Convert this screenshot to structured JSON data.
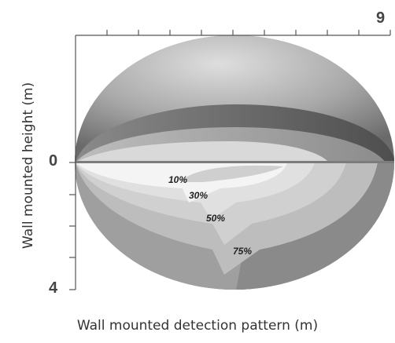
{
  "figure": {
    "x_axis_title": "Wall mounted detection pattern (m)",
    "y_axis_title": "Wall mounted height (m)",
    "x_axis_end_label": "9",
    "y_axis_labels": [
      "0",
      "4"
    ],
    "zone_labels": [
      "10%",
      "30%",
      "50%",
      "75%"
    ],
    "colors": {
      "axis": "#555555",
      "dome_light": "#cfcfcf",
      "dome_dark": "#6e6e6e",
      "band_dark": "#5e5e5e",
      "zone_white": "#f4f4f4",
      "zone_light": "#d2d2d2",
      "zone_mid": "#a8a8a8",
      "zone_dark": "#7a7a7a"
    }
  }
}
